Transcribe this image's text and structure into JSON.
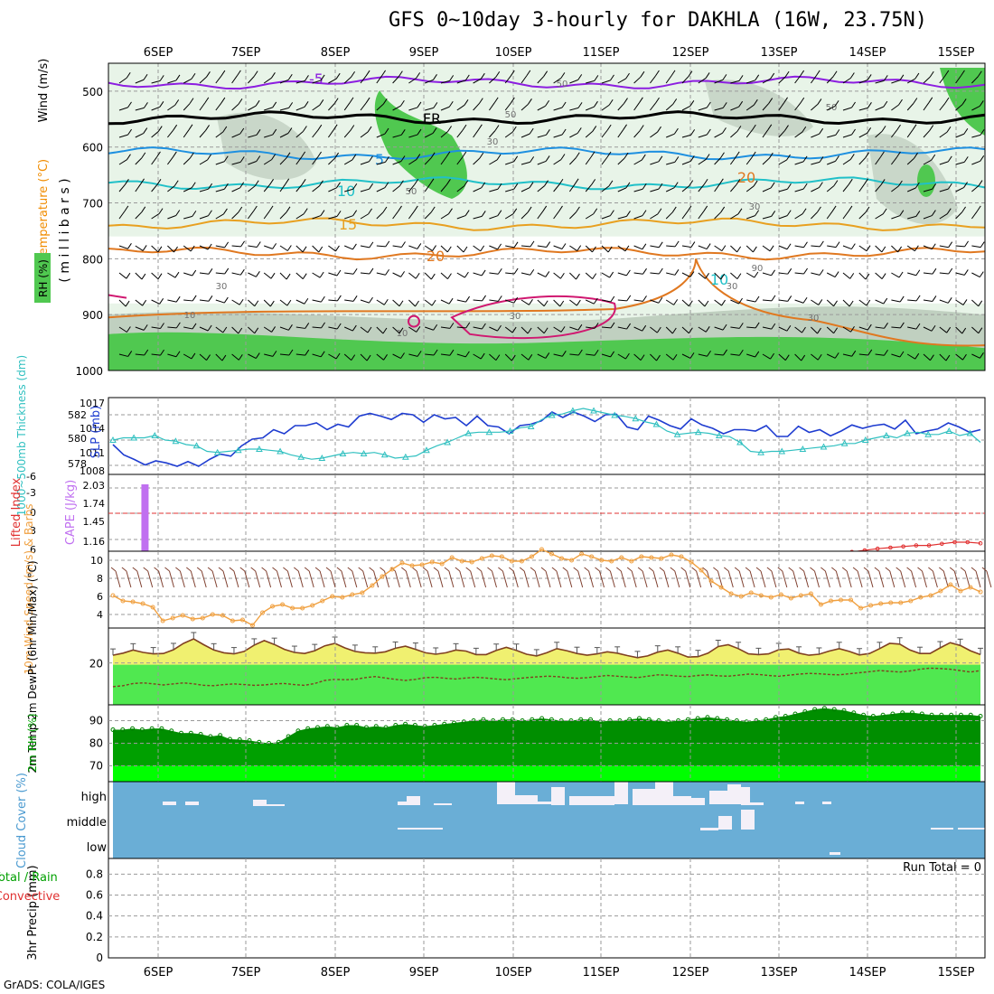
{
  "title": "GFS 0~10day 3-hourly for DAKHLA (16W, 23.75N)",
  "credit": "GrADS: COLA/IGES",
  "colors": {
    "temperature_line": "#f08c00",
    "wind_speed_line": "#f0a040",
    "slp_line": "#1e3cd0",
    "thickness_line": "#30c0c0",
    "cape_bar": "#c070f0",
    "lifted_index_line": "#e03030",
    "rh_dark": "#00a000",
    "rh_light": "#00ff00",
    "rh_scatter": "#008000",
    "temp_fill": "#f0f070",
    "dewpt_fill": "#50e850",
    "cloud_bg": "#6aaed6",
    "cloud_cover": "#f4f0f8",
    "rh_shade_1": "#e8f4e8",
    "rh_shade_2": "#c0d0c0",
    "rh_shade_3": "#50c850"
  },
  "chart_data": [
    {
      "panel": "upper-air",
      "type": "heatmap",
      "x_tick_labels": [
        "6SEP",
        "7SEP",
        "8SEP",
        "9SEP",
        "10SEP",
        "11SEP",
        "12SEP",
        "13SEP",
        "14SEP",
        "15SEP"
      ],
      "ylabel_temperature": "Temperature (°C)",
      "ylabel_wind": "Wind (m/s)",
      "ylabel_rh": "RH (%)",
      "ylabel_pressure": "( m i l l i b a r s )",
      "y_ticks": [
        "500",
        "600",
        "700",
        "800",
        "900",
        "1000"
      ],
      "ylim": [
        1000,
        450
      ],
      "isotherm_labels": [
        "-5",
        "FR",
        "5",
        "10",
        "15",
        "20",
        "10",
        "20"
      ],
      "isotherm_levels_mb": [
        {
          "label": "-5",
          "pressure": 485,
          "color": "#8c1ee0"
        },
        {
          "label": "FR",
          "pressure": 548,
          "color": "#000000"
        },
        {
          "label": "5",
          "pressure": 612,
          "color": "#1e90e0"
        },
        {
          "label": "10",
          "pressure": 665,
          "color": "#20c0c8"
        },
        {
          "label": "15",
          "pressure": 738,
          "color": "#e8a020"
        },
        {
          "label": "20",
          "pressure": 790,
          "color": "#e07820"
        }
      ],
      "rh_contour_labels": [
        "50",
        "30",
        "50",
        "30",
        "30",
        "50",
        "30",
        "50",
        "30",
        "30",
        "10",
        "10",
        "90"
      ]
    },
    {
      "panel": "slp-thickness",
      "type": "line",
      "ylabel_thickness": "1000~500mb Thickness (dm)",
      "ylabel_slp": "SLP (mb)",
      "thickness_ticks": [
        "582",
        "580",
        "578"
      ],
      "slp_ticks": [
        "1017",
        "1014",
        "1011",
        "1008"
      ],
      "slp_ylim": [
        1008,
        1018
      ],
      "thickness_ylim": [
        577,
        583
      ],
      "series": [
        {
          "key": "slp",
          "values": [
            1012,
            1010.5,
            1009.8,
            1009,
            1009.6,
            1009.3,
            1008.8,
            1009.5,
            1008.8,
            1009.8,
            1010.6,
            1010.3,
            1011.8,
            1012.8,
            1013,
            1014.2,
            1013.6,
            1014.8,
            1014.8,
            1015.2,
            1014.2,
            1015,
            1014.6,
            1016.2,
            1016.6,
            1016.2,
            1015.7,
            1016.6,
            1016.4,
            1015.3,
            1016.4,
            1015.8,
            1016,
            1014.8,
            1016.2,
            1014.8,
            1014.6,
            1013.6,
            1014.8,
            1015,
            1015.5,
            1016.8,
            1016,
            1016.8,
            1016.2,
            1015.4,
            1016.4,
            1016.5,
            1014.6,
            1014.2,
            1016.2,
            1015.6,
            1014.8,
            1014.3,
            1015.8,
            1014.9,
            1014.4,
            1013.6,
            1014.2,
            1014.2,
            1014,
            1014.8,
            1013.2,
            1013.2,
            1014.7,
            1013.8,
            1014.2,
            1013.3,
            1014,
            1014.9,
            1014.4,
            1014.8,
            1015,
            1014.3,
            1015.6,
            1013.6,
            1014,
            1014.3,
            1015.2,
            1014.6,
            1013.8,
            1014.2
          ]
        },
        {
          "key": "thickness",
          "values": [
            579.8,
            580,
            580,
            580,
            580.2,
            579.8,
            579.7,
            579.4,
            579.3,
            578.8,
            578.7,
            578.8,
            578.9,
            579,
            579,
            578.9,
            578.8,
            578.5,
            578.3,
            578.1,
            578.2,
            578.4,
            578.6,
            578.7,
            578.6,
            578.7,
            578.5,
            578.2,
            578.3,
            578.4,
            578.9,
            579.3,
            579.6,
            580,
            580.4,
            580.5,
            580.5,
            580.5,
            580.6,
            580.9,
            581,
            581.6,
            582,
            582.1,
            582.4,
            582.6,
            582.4,
            582.2,
            582,
            581.9,
            581.7,
            581.4,
            581.2,
            580.6,
            580.3,
            580.4,
            580.5,
            580.4,
            580.2,
            580.1,
            579.6,
            578.8,
            578.7,
            578.8,
            578.8,
            578.9,
            579,
            579.1,
            579.2,
            579.3,
            579.5,
            579.5,
            579.8,
            580,
            580.2,
            580,
            580.4,
            580.5,
            580.3,
            580.3,
            580.6,
            580.2,
            580.4,
            579.6
          ]
        }
      ]
    },
    {
      "panel": "lifted-index-cape",
      "type": "bar",
      "ylabel_li": "Lifted Index",
      "ylabel_cape": "CAPE (J/kg)",
      "li_ticks": [
        "-6",
        "-3",
        "0",
        "3",
        "6"
      ],
      "cape_ticks": [
        "2.03",
        "1.74",
        "1.45",
        "1.16"
      ],
      "cape_bar": {
        "day_index": 0.35,
        "top": 2.03
      },
      "li_series": [
        6.5,
        6.3,
        6.0,
        5.8,
        5.5,
        5.2,
        5.0,
        4.8,
        4.6,
        4.6,
        4.3,
        4.0,
        4.0,
        4.2
      ]
    },
    {
      "panel": "10m-wind",
      "type": "line",
      "ylabel": "10m Wind Speed (m/s) & Barbs",
      "y_ticks": [
        "10",
        "8",
        "6",
        "4"
      ],
      "ylim": [
        2.5,
        11
      ],
      "values": [
        6.1,
        5.5,
        5.4,
        5.2,
        4.8,
        3.3,
        3.6,
        3.9,
        3.5,
        3.6,
        4.0,
        3.9,
        3.3,
        3.4,
        2.8,
        4.2,
        4.9,
        5.1,
        4.7,
        4.7,
        5.0,
        5.5,
        6.0,
        5.9,
        6.2,
        6.4,
        7.2,
        8.2,
        9.0,
        9.7,
        9.4,
        9.5,
        9.8,
        9.6,
        10.3,
        9.9,
        9.8,
        10.2,
        10.5,
        10.4,
        9.9,
        9.9,
        10.4,
        11.2,
        10.7,
        10.2,
        10.0,
        10.7,
        10.4,
        10.0,
        9.9,
        10.3,
        9.9,
        10.4,
        10.3,
        10.2,
        10.6,
        10.4,
        9.8,
        8.9,
        7.7,
        7.0,
        6.3,
        6.0,
        6.4,
        6.1,
        5.9,
        6.2,
        5.8,
        6.1,
        6.3,
        5.1,
        5.5,
        5.6,
        5.6,
        4.7,
        5.0,
        5.2,
        5.3,
        5.3,
        5.5,
        5.9,
        6.1,
        6.6,
        7.3,
        6.6,
        7.0,
        6.5
      ]
    },
    {
      "panel": "2m-temp-dewpt",
      "type": "area",
      "ylabel": "2m Temp 2m DewPt (6hr Min/Max) (°C)",
      "y_ticks": [
        "20"
      ],
      "ylim": [
        8,
        30
      ],
      "temp": [
        22.2,
        22.8,
        23.7,
        23.0,
        22.6,
        22.7,
        23.8,
        25.6,
        26.9,
        25.2,
        23.7,
        22.9,
        22.6,
        23.3,
        25.1,
        26.4,
        25.3,
        23.9,
        23.0,
        22.7,
        23.5,
        24.9,
        25.6,
        24.3,
        23.3,
        22.9,
        22.8,
        23.2,
        24.2,
        24.8,
        23.9,
        22.9,
        22.5,
        22.9,
        23.7,
        23.4,
        22.4,
        22.4,
        23.6,
        24.5,
        23.6,
        22.5,
        22.0,
        22.9,
        24.1,
        23.5,
        22.7,
        22.2,
        22.6,
        23.2,
        22.8,
        22.1,
        21.5,
        22.0,
        23.1,
        23.7,
        22.8,
        21.7,
        21.8,
        22.8,
        24.7,
        25.2,
        24.1,
        22.6,
        22.4,
        22.6,
        23.8,
        24.0,
        22.8,
        22.2,
        22.5,
        23.4,
        24.1,
        23.3,
        22.3,
        22.7,
        24.1,
        25.6,
        25.4,
        23.7,
        22.7,
        22.7,
        24.3,
        25.8,
        25.0,
        23.5,
        22.4
      ],
      "dewpt": [
        13.2,
        13.5,
        14.1,
        14.3,
        14.0,
        13.7,
        14.0,
        14.3,
        14.0,
        13.6,
        13.5,
        13.8,
        14.0,
        13.8,
        13.6,
        13.7,
        14.0,
        14.1,
        13.8,
        13.6,
        14.1,
        15.0,
        15.3,
        15.2,
        15.3,
        15.8,
        16.1,
        15.7,
        15.3,
        15.0,
        15.3,
        15.8,
        15.9,
        15.6,
        15.4,
        15.7,
        15.9,
        15.7,
        15.4,
        15.2,
        15.5,
        15.8,
        16.0,
        16.2,
        16.1,
        15.8,
        15.6,
        15.8,
        16.1,
        16.4,
        16.2,
        16.0,
        15.8,
        16.2,
        16.6,
        16.5,
        16.2,
        16.1,
        16.4,
        16.6,
        16.3,
        16.2,
        16.5,
        16.8,
        16.7,
        16.4,
        16.2,
        16.5,
        16.8,
        17.0,
        16.9,
        16.7,
        16.6,
        16.9,
        17.2,
        17.5,
        17.8,
        17.6,
        17.4,
        17.7,
        18.2,
        18.5,
        18.4,
        18.2,
        17.8,
        17.4,
        17.8
      ]
    },
    {
      "panel": "2m-rh",
      "type": "area",
      "ylabel": "2m RH (%)",
      "y_ticks": [
        "90",
        "80",
        "70"
      ],
      "ylim": [
        63,
        97
      ],
      "values": [
        86,
        86,
        86.5,
        86,
        86.5,
        86.5,
        85.5,
        84.5,
        84.5,
        84,
        83,
        83.5,
        81.8,
        81.6,
        81.2,
        80.5,
        80,
        80.5,
        83,
        85.5,
        86.5,
        87,
        87.5,
        87,
        88,
        88,
        87,
        87.5,
        87,
        88,
        88.5,
        88,
        87.5,
        88,
        88.5,
        89,
        89.5,
        90,
        90.5,
        90,
        90.5,
        90.5,
        90,
        90.5,
        91,
        90.5,
        90,
        90,
        90.5,
        90.5,
        89.5,
        90,
        90,
        90.5,
        91,
        90.5,
        90,
        89.5,
        90,
        90.5,
        91,
        91.5,
        91,
        90.5,
        90,
        89.5,
        90,
        90.5,
        91.5,
        92,
        93,
        94,
        95,
        95.5,
        95,
        94.5,
        93.5,
        92.5,
        92,
        92.5,
        93,
        93.5,
        93.5,
        93,
        92.5,
        92.5,
        92.5,
        92.5,
        92.5,
        92
      ]
    },
    {
      "panel": "cloud-cover",
      "type": "bar",
      "ylabel": "Cloud Cover (%)",
      "level_labels": [
        "high",
        "middle",
        "low"
      ],
      "high_cover_by_day": [
        0.1,
        0.1,
        0,
        0.05,
        0.1,
        0.8,
        0.9,
        0.7,
        0,
        0.05,
        0
      ]
    },
    {
      "panel": "precip",
      "type": "bar",
      "ylabel_total": "Total / Rain",
      "ylabel_conv": "Convective",
      "ylabel_unit": "3hr Precip (mm)",
      "y_ticks": [
        "0.8",
        "0.6",
        "0.4",
        "0.2",
        "0"
      ],
      "ylim": [
        0,
        0.95
      ],
      "run_total_label": "Run Total = 0",
      "values": []
    }
  ]
}
